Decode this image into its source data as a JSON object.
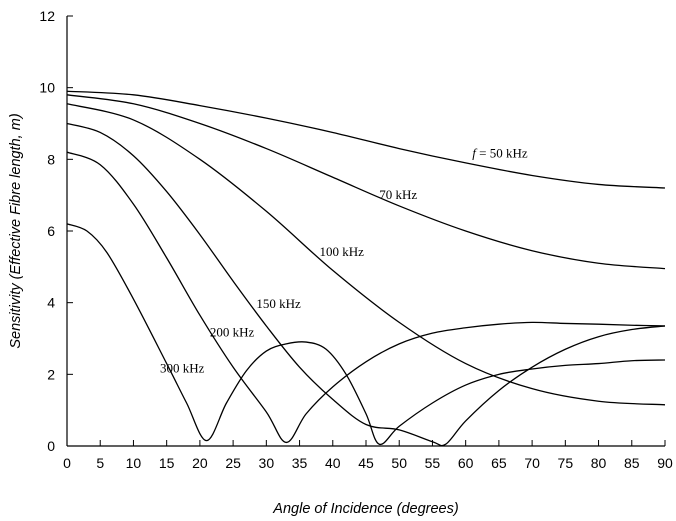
{
  "chart_data": {
    "type": "line",
    "xlabel": "Angle of Incidence (degrees)",
    "ylabel": "Sensitivity (Effective Fibre length, m)",
    "xlim": [
      0,
      90
    ],
    "ylim": [
      0,
      12
    ],
    "xticks": [
      0,
      5,
      10,
      15,
      20,
      25,
      30,
      35,
      40,
      45,
      50,
      55,
      60,
      65,
      70,
      75,
      80,
      85,
      90
    ],
    "yticks": [
      0,
      2,
      4,
      6,
      8,
      10,
      12
    ],
    "grid": false,
    "legend": "none",
    "series": [
      {
        "name": "f = 50 kHz",
        "label_prefix": "f",
        "label_rest": " = 50 kHz",
        "label_at": [
          61,
          8.05
        ],
        "x": [
          0,
          10,
          20,
          30,
          40,
          50,
          60,
          70,
          80,
          90
        ],
        "y": [
          9.9,
          9.8,
          9.5,
          9.15,
          8.75,
          8.3,
          7.9,
          7.55,
          7.3,
          7.2
        ]
      },
      {
        "name": "70 kHz",
        "label_at": [
          47,
          6.9
        ],
        "x": [
          0,
          10,
          20,
          30,
          40,
          50,
          60,
          70,
          80,
          90
        ],
        "y": [
          9.8,
          9.55,
          9.0,
          8.3,
          7.5,
          6.7,
          6.0,
          5.45,
          5.1,
          4.95
        ]
      },
      {
        "name": "100 kHz",
        "label_at": [
          38,
          5.3
        ],
        "x": [
          0,
          10,
          20,
          30,
          40,
          50,
          60,
          70,
          80,
          90
        ],
        "y": [
          9.55,
          9.1,
          8.0,
          6.55,
          4.9,
          3.45,
          2.3,
          1.6,
          1.25,
          1.15
        ]
      },
      {
        "name": "150 kHz",
        "label_at": [
          28.5,
          3.85
        ],
        "x": [
          0,
          5,
          10,
          15,
          20,
          25,
          30,
          35,
          40,
          45,
          50,
          55,
          57,
          60,
          65,
          70,
          75,
          80,
          85,
          90
        ],
        "y": [
          9.0,
          8.75,
          8.1,
          7.1,
          5.9,
          4.6,
          3.35,
          2.2,
          1.3,
          0.6,
          0.45,
          0.12,
          0.05,
          0.7,
          1.55,
          2.2,
          2.7,
          3.05,
          3.25,
          3.35
        ]
      },
      {
        "name": "200 kHz",
        "label_at": [
          21.5,
          3.05
        ],
        "x": [
          0,
          5,
          10,
          15,
          20,
          25,
          30,
          33,
          36,
          40,
          45,
          50,
          55,
          60,
          65,
          70,
          75,
          80,
          85,
          90
        ],
        "y": [
          8.2,
          7.85,
          6.75,
          5.25,
          3.65,
          2.2,
          0.95,
          0.1,
          0.9,
          1.65,
          2.35,
          2.85,
          3.15,
          3.3,
          3.4,
          3.45,
          3.42,
          3.4,
          3.37,
          3.35
        ]
      },
      {
        "name": "300 kHz",
        "label_at": [
          14,
          2.05
        ],
        "x": [
          0,
          3,
          6,
          10,
          15,
          18,
          21,
          24,
          27,
          30,
          33,
          36,
          39,
          42,
          45,
          47,
          50,
          55,
          60,
          65,
          70,
          75,
          80,
          85,
          90
        ],
        "y": [
          6.2,
          6.0,
          5.4,
          4.1,
          2.3,
          1.2,
          0.15,
          1.2,
          2.1,
          2.65,
          2.85,
          2.9,
          2.7,
          2.0,
          0.9,
          0.05,
          0.55,
          1.2,
          1.7,
          2.0,
          2.15,
          2.25,
          2.3,
          2.38,
          2.4
        ]
      }
    ]
  }
}
